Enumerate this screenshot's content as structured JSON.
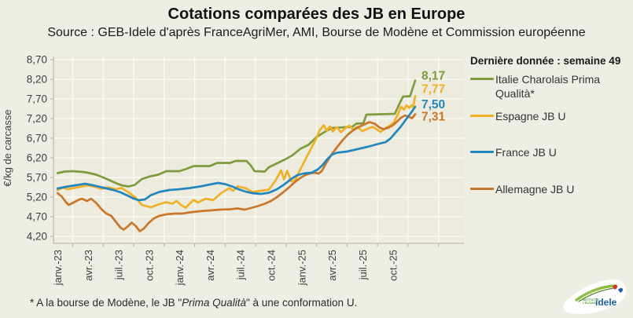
{
  "title": "Cotations comparées des JB en Europe",
  "subtitle": "Source : GEB-Idele d'après FranceAgriMer, AMI, Bourse de Modène et Commission européenne",
  "footnote": {
    "prefix": "* A la bourse de Modène, le  JB \"",
    "italic": "Prima Qualità",
    "suffix": "\" à une conformation U."
  },
  "legend": {
    "title": "Dernière donnée : semaine 49",
    "items": [
      {
        "key": "italie",
        "label": "Italie Charolais Prima Qualità*",
        "color": "#7e9c3e"
      },
      {
        "key": "espagne",
        "label": "Espagne JB U",
        "color": "#f0b028"
      },
      {
        "key": "france",
        "label": "France JB U",
        "color": "#2287be"
      },
      {
        "key": "allemagne",
        "label": "Allemagne JB U",
        "color": "#c8772b"
      }
    ]
  },
  "logo": {
    "brand": "idele",
    "caption_line1": "INSTITUT DE",
    "caption_line2": "L'ÉLEVAGE"
  },
  "chart_data": {
    "type": "line",
    "title": "Cotations comparées des JB en Europe",
    "ylabel": "€/kg de carcasse",
    "xlabel": "",
    "ylim": [
      4.2,
      8.7
    ],
    "ytick_step": 0.5,
    "ytick_labels": [
      "8,70",
      "8,20",
      "7,70",
      "7,20",
      "6,70",
      "6,20",
      "5,70",
      "5,20",
      "4,70",
      "4,20"
    ],
    "xlim": [
      -0.4,
      40.0
    ],
    "x_unit": "months since janv.-23",
    "xticks": [
      {
        "m": 0,
        "label": "janv.-23"
      },
      {
        "m": 3,
        "label": "avr.-23"
      },
      {
        "m": 6,
        "label": "juil.-23"
      },
      {
        "m": 9,
        "label": "oct.-23"
      },
      {
        "m": 12,
        "label": "janv.-24"
      },
      {
        "m": 15,
        "label": "avr.-24"
      },
      {
        "m": 18,
        "label": "juil.-24"
      },
      {
        "m": 21,
        "label": "oct.-24"
      },
      {
        "m": 24,
        "label": "janv.-25"
      },
      {
        "m": 27,
        "label": "avr.-25"
      },
      {
        "m": 30,
        "label": "juil.-25"
      },
      {
        "m": 33,
        "label": "oct.-25"
      }
    ],
    "x_gridlines": [
      1.5,
      4.5,
      7.5,
      10.5,
      13.5,
      16.5,
      19.5,
      22.5,
      25.5,
      28.5,
      31.5,
      34.5,
      37.5
    ],
    "grid": true,
    "legend_position": "right",
    "colors": {
      "plot_bg": "#ecebde",
      "page_bg": "#efeee3",
      "gridline": "#fafaf3",
      "axis": "#b0b0a2",
      "tick_text": "#3f3f3f"
    },
    "series": [
      {
        "key": "italie-charolais-prima-qualita",
        "name": "Italie Charolais Prima Qualità*",
        "color": "#7e9c3e",
        "end_value": 8.17,
        "end_label": "8,17",
        "end_label_dy": -6,
        "points": [
          [
            0,
            5.81
          ],
          [
            0.7,
            5.85
          ],
          [
            1.5,
            5.86
          ],
          [
            2.5,
            5.84
          ],
          [
            3,
            5.82
          ],
          [
            3.8,
            5.77
          ],
          [
            4.5,
            5.7
          ],
          [
            5.2,
            5.62
          ],
          [
            5.8,
            5.55
          ],
          [
            6.3,
            5.5
          ],
          [
            7,
            5.47
          ],
          [
            7.6,
            5.51
          ],
          [
            8.3,
            5.66
          ],
          [
            9,
            5.72
          ],
          [
            9.9,
            5.77
          ],
          [
            10.7,
            5.86
          ],
          [
            12,
            5.86
          ],
          [
            12.7,
            5.92
          ],
          [
            13.4,
            5.99
          ],
          [
            15,
            5.99
          ],
          [
            15.7,
            6.07
          ],
          [
            17,
            6.07
          ],
          [
            17.5,
            6.12
          ],
          [
            18.6,
            6.12
          ],
          [
            19,
            6.01
          ],
          [
            19.4,
            5.86
          ],
          [
            20.4,
            5.85
          ],
          [
            20.8,
            5.96
          ],
          [
            21.6,
            6.06
          ],
          [
            22.4,
            6.16
          ],
          [
            23.1,
            6.26
          ],
          [
            23.9,
            6.43
          ],
          [
            24.7,
            6.53
          ],
          [
            25.5,
            6.73
          ],
          [
            26.3,
            6.86
          ],
          [
            27,
            6.96
          ],
          [
            29,
            6.99
          ],
          [
            29.4,
            7.07
          ],
          [
            30.1,
            7.08
          ],
          [
            30.4,
            7.3
          ],
          [
            33.2,
            7.32
          ],
          [
            33.6,
            7.55
          ],
          [
            34,
            7.76
          ],
          [
            34.7,
            7.77
          ],
          [
            34.9,
            7.93
          ],
          [
            35.2,
            8.17
          ]
        ]
      },
      {
        "key": "espagne-jb-u",
        "name": "Espagne JB U",
        "color": "#f0b028",
        "end_value": 7.77,
        "end_label": "7,77",
        "end_label_dy": -9,
        "points": [
          [
            0,
            5.38
          ],
          [
            0.5,
            5.44
          ],
          [
            1,
            5.4
          ],
          [
            2,
            5.45
          ],
          [
            3,
            5.5
          ],
          [
            3.7,
            5.46
          ],
          [
            4.3,
            5.41
          ],
          [
            5,
            5.45
          ],
          [
            5.7,
            5.4
          ],
          [
            6.3,
            5.43
          ],
          [
            7,
            5.32
          ],
          [
            7.7,
            5.18
          ],
          [
            8.3,
            5.0
          ],
          [
            9.2,
            4.94
          ],
          [
            9.9,
            5.01
          ],
          [
            10.7,
            5.07
          ],
          [
            11.3,
            5.03
          ],
          [
            11.7,
            5.1
          ],
          [
            12.2,
            4.99
          ],
          [
            12.6,
            4.93
          ],
          [
            13.4,
            5.13
          ],
          [
            13.8,
            5.06
          ],
          [
            14.6,
            5.16
          ],
          [
            15.3,
            5.12
          ],
          [
            16.1,
            5.3
          ],
          [
            16.9,
            5.43
          ],
          [
            17.3,
            5.36
          ],
          [
            17.7,
            5.47
          ],
          [
            18.5,
            5.43
          ],
          [
            19.2,
            5.33
          ],
          [
            20,
            5.36
          ],
          [
            20.8,
            5.39
          ],
          [
            21.4,
            5.6
          ],
          [
            21.7,
            5.73
          ],
          [
            22,
            5.88
          ],
          [
            22.3,
            5.65
          ],
          [
            22.6,
            5.87
          ],
          [
            23,
            5.6
          ],
          [
            23.4,
            5.63
          ],
          [
            23.8,
            5.86
          ],
          [
            24.2,
            6.06
          ],
          [
            24.6,
            6.26
          ],
          [
            25,
            6.46
          ],
          [
            25.4,
            6.66
          ],
          [
            25.8,
            6.9
          ],
          [
            26.2,
            7.03
          ],
          [
            26.5,
            6.89
          ],
          [
            26.8,
            7.0
          ],
          [
            27.1,
            6.87
          ],
          [
            27.5,
            6.98
          ],
          [
            27.9,
            6.85
          ],
          [
            28.3,
            6.95
          ],
          [
            28.7,
            7.02
          ],
          [
            29.1,
            6.92
          ],
          [
            29.5,
            6.99
          ],
          [
            30,
            6.88
          ],
          [
            30.5,
            6.94
          ],
          [
            31,
            6.99
          ],
          [
            31.4,
            6.93
          ],
          [
            31.8,
            6.86
          ],
          [
            32.3,
            6.96
          ],
          [
            32.7,
            7.02
          ],
          [
            33.1,
            7.1
          ],
          [
            33.5,
            7.31
          ],
          [
            33.8,
            7.5
          ],
          [
            34.1,
            7.43
          ],
          [
            34.35,
            7.54
          ],
          [
            34.6,
            7.47
          ],
          [
            34.85,
            7.54
          ],
          [
            35,
            7.49
          ],
          [
            35.2,
            7.77
          ]
        ]
      },
      {
        "key": "allemagne-jb-u",
        "name": "Allemagne JB U",
        "color": "#c8772b",
        "end_value": 7.31,
        "end_label": "7,31",
        "end_label_dy": 3,
        "points": [
          [
            0,
            5.3
          ],
          [
            0.4,
            5.22
          ],
          [
            0.8,
            5.08
          ],
          [
            1.1,
            5.0
          ],
          [
            1.5,
            5.05
          ],
          [
            2,
            5.12
          ],
          [
            2.4,
            5.16
          ],
          [
            2.9,
            5.1
          ],
          [
            3.3,
            5.16
          ],
          [
            3.8,
            5.05
          ],
          [
            4.3,
            4.9
          ],
          [
            4.8,
            4.78
          ],
          [
            5.3,
            4.72
          ],
          [
            5.8,
            4.55
          ],
          [
            6.2,
            4.42
          ],
          [
            6.5,
            4.37
          ],
          [
            6.9,
            4.45
          ],
          [
            7.3,
            4.55
          ],
          [
            7.7,
            4.46
          ],
          [
            8.1,
            4.33
          ],
          [
            8.5,
            4.4
          ],
          [
            9,
            4.55
          ],
          [
            9.5,
            4.66
          ],
          [
            10,
            4.72
          ],
          [
            10.7,
            4.76
          ],
          [
            11.5,
            4.78
          ],
          [
            12.3,
            4.78
          ],
          [
            13,
            4.81
          ],
          [
            14,
            4.84
          ],
          [
            15,
            4.86
          ],
          [
            16,
            4.88
          ],
          [
            17,
            4.89
          ],
          [
            17.7,
            4.91
          ],
          [
            18.4,
            4.88
          ],
          [
            19,
            4.92
          ],
          [
            19.7,
            4.97
          ],
          [
            20.4,
            5.03
          ],
          [
            21,
            5.1
          ],
          [
            21.6,
            5.2
          ],
          [
            22.2,
            5.32
          ],
          [
            22.8,
            5.45
          ],
          [
            23.3,
            5.57
          ],
          [
            23.8,
            5.67
          ],
          [
            24.3,
            5.75
          ],
          [
            24.8,
            5.8
          ],
          [
            25.3,
            5.82
          ],
          [
            25.7,
            5.8
          ],
          [
            26,
            5.86
          ],
          [
            26.3,
            6.0
          ],
          [
            26.7,
            6.18
          ],
          [
            27.1,
            6.33
          ],
          [
            27.6,
            6.5
          ],
          [
            28.1,
            6.66
          ],
          [
            28.6,
            6.8
          ],
          [
            29.1,
            6.9
          ],
          [
            29.6,
            6.98
          ],
          [
            30.1,
            7.04
          ],
          [
            30.7,
            7.11
          ],
          [
            31.2,
            7.07
          ],
          [
            31.7,
            6.97
          ],
          [
            32.1,
            6.93
          ],
          [
            32.6,
            6.97
          ],
          [
            33,
            7.03
          ],
          [
            33.4,
            7.12
          ],
          [
            33.8,
            7.22
          ],
          [
            34.2,
            7.28
          ],
          [
            34.6,
            7.24
          ],
          [
            34.9,
            7.21
          ],
          [
            35.2,
            7.31
          ]
        ]
      },
      {
        "key": "france-jb-u",
        "name": "France JB U",
        "color": "#2287be",
        "end_value": 7.5,
        "end_label": "7,50",
        "end_label_dy": -3,
        "points": [
          [
            0,
            5.42
          ],
          [
            1,
            5.47
          ],
          [
            2,
            5.51
          ],
          [
            2.7,
            5.54
          ],
          [
            3.5,
            5.5
          ],
          [
            4.5,
            5.44
          ],
          [
            5.5,
            5.38
          ],
          [
            6.2,
            5.32
          ],
          [
            6.8,
            5.25
          ],
          [
            7.5,
            5.16
          ],
          [
            8,
            5.12
          ],
          [
            8.6,
            5.14
          ],
          [
            9.2,
            5.25
          ],
          [
            10,
            5.33
          ],
          [
            11,
            5.38
          ],
          [
            12,
            5.4
          ],
          [
            13,
            5.43
          ],
          [
            14,
            5.47
          ],
          [
            15,
            5.52
          ],
          [
            15.8,
            5.56
          ],
          [
            16.5,
            5.53
          ],
          [
            17.2,
            5.47
          ],
          [
            17.8,
            5.4
          ],
          [
            18.5,
            5.34
          ],
          [
            19.2,
            5.3
          ],
          [
            20,
            5.28
          ],
          [
            20.8,
            5.31
          ],
          [
            21.6,
            5.4
          ],
          [
            22.3,
            5.52
          ],
          [
            23,
            5.66
          ],
          [
            23.6,
            5.76
          ],
          [
            24.2,
            5.8
          ],
          [
            25,
            5.82
          ],
          [
            25.6,
            5.9
          ],
          [
            26.1,
            6.02
          ],
          [
            26.5,
            6.15
          ],
          [
            27,
            6.28
          ],
          [
            27.5,
            6.33
          ],
          [
            28.5,
            6.36
          ],
          [
            29.5,
            6.42
          ],
          [
            30.5,
            6.48
          ],
          [
            31.5,
            6.55
          ],
          [
            32.3,
            6.6
          ],
          [
            32.8,
            6.7
          ],
          [
            33.3,
            6.85
          ],
          [
            33.8,
            7.0
          ],
          [
            34.3,
            7.18
          ],
          [
            34.8,
            7.35
          ],
          [
            35.2,
            7.5
          ]
        ]
      }
    ]
  }
}
